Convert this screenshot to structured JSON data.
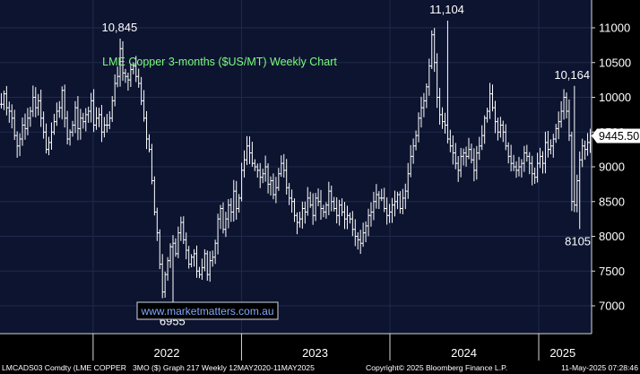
{
  "chart_data": {
    "type": "ohlc",
    "title": "LME Copper 3-months ($US/MT) Weekly Chart",
    "title_color": "#7CFC7C",
    "ylim": [
      6600,
      11400
    ],
    "y_ticks": [
      7000,
      7500,
      8000,
      8500,
      9000,
      9500,
      10000,
      10500,
      11000
    ],
    "y_tick_labels": [
      "7000",
      "7500",
      "8000",
      "8500",
      "9000",
      "9500",
      "10000",
      "10500",
      "11000"
    ],
    "x_range": [
      "2021-05-17",
      "2025-05-11"
    ],
    "x_ticks": [
      "2022-01-01",
      "2023-01-01",
      "2024-01-01",
      "2025-01-01"
    ],
    "x_labels": [
      {
        "label": "2022",
        "date": "2022-07-01"
      },
      {
        "label": "2023",
        "date": "2023-07-01"
      },
      {
        "label": "2024",
        "date": "2024-07-01"
      },
      {
        "label": "2025",
        "date": "2025-03-01"
      }
    ],
    "grid": true,
    "grid_color": "#1f2a4a",
    "background": "#0c1430",
    "bar_color": "#ffffff",
    "last_price": {
      "label": "9445.50",
      "value": 9445.5
    },
    "annotations": [
      {
        "label": "10,845",
        "date": "2022-03-07",
        "value": 10845,
        "position": "above"
      },
      {
        "label": "6955",
        "date": "2022-07-15",
        "value": 6955,
        "position": "below"
      },
      {
        "label": "11,104",
        "date": "2024-05-20",
        "value": 11104,
        "position": "above"
      },
      {
        "label": "10,164",
        "date": "2025-03-24",
        "value": 10164,
        "position": "above"
      },
      {
        "label": "8105",
        "date": "2025-04-07",
        "value": 8105,
        "position": "below"
      }
    ],
    "closes": [
      9900,
      10050,
      9850,
      9800,
      9700,
      9450,
      9300,
      9400,
      9600,
      9550,
      9700,
      9800,
      10000,
      9850,
      9950,
      9700,
      9500,
      9250,
      9350,
      9500,
      9650,
      9800,
      9850,
      10100,
      9700,
      9400,
      9500,
      9600,
      9850,
      9550,
      9700,
      9650,
      9750,
      9800,
      9950,
      9600,
      9700,
      9750,
      9500,
      9600,
      9600,
      9700,
      9950,
      10200,
      10300,
      10700,
      10350,
      10300,
      10250,
      10400,
      10450,
      10300,
      10200,
      9950,
      9700,
      9400,
      9250,
      8800,
      8350,
      8050,
      7600,
      7200,
      7450,
      7650,
      7850,
      7900,
      7750,
      8050,
      8200,
      7950,
      7800,
      7600,
      7700,
      7750,
      7500,
      7450,
      7550,
      7750,
      7450,
      7650,
      7700,
      7900,
      8250,
      8400,
      8100,
      8250,
      8450,
      8350,
      8650,
      8400,
      8550,
      8950,
      9100,
      9300,
      9200,
      9050,
      9000,
      8950,
      8850,
      8900,
      9000,
      8750,
      8800,
      8600,
      8700,
      8900,
      9050,
      8950,
      8700,
      8550,
      8500,
      8300,
      8200,
      8250,
      8400,
      8350,
      8550,
      8450,
      8300,
      8550,
      8500,
      8400,
      8350,
      8450,
      8650,
      8500,
      8400,
      8300,
      8450,
      8350,
      8250,
      8300,
      8250,
      8100,
      8000,
      7950,
      7900,
      8050,
      8150,
      8300,
      8350,
      8500,
      8600,
      8550,
      8550,
      8400,
      8300,
      8350,
      8450,
      8500,
      8600,
      8400,
      8550,
      8650,
      8900,
      9150,
      9300,
      9450,
      9700,
      9850,
      9950,
      10150,
      10450,
      10900,
      10500,
      10000,
      9750,
      9650,
      9600,
      9400,
      9300,
      9200,
      9050,
      8950,
      9150,
      9200,
      9150,
      9250,
      9100,
      8950,
      9200,
      9300,
      9450,
      9700,
      9800,
      10050,
      9850,
      9650,
      9500,
      9600,
      9500,
      9300,
      9150,
      9050,
      9000,
      8950,
      9000,
      9050,
      9200,
      9150,
      9050,
      8900,
      8850,
      9050,
      9150,
      9050,
      9350,
      9250,
      9300,
      9400,
      9550,
      9650,
      9800,
      10000,
      9800,
      9450,
      8500,
      8450,
      8800,
      9100,
      9300,
      9250,
      9350,
      9445.5
    ]
  },
  "watermark": {
    "text": "www.marketmatters.com.au",
    "color": "#7fa8ff"
  },
  "footer": {
    "ticker": "LMCADS03 Comdty (LME COPPER",
    "graph": "3MO ($) Graph 217  Weekly 12MAY2020-11MAY2025",
    "copyright": "Copyright© 2025 Bloomberg Finance L.P.",
    "timestamp": "11-May-2025 07:28:46"
  }
}
